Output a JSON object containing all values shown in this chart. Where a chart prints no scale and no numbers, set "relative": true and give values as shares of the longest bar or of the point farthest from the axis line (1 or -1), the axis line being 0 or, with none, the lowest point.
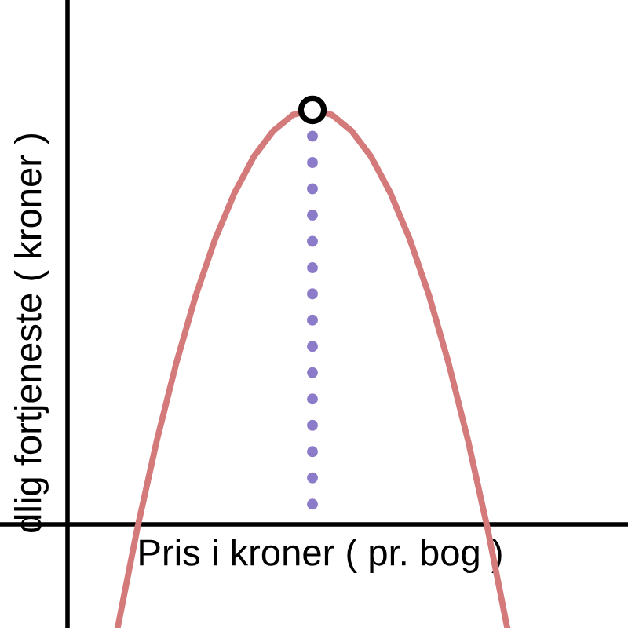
{
  "chart_data": {
    "type": "line",
    "relative": true,
    "xlabel": "Pris i kroner ( pr. bog )",
    "ylabel": "dlig fortjeneste ( kroner )",
    "categories": [
      null,
      null,
      null,
      null,
      null,
      null,
      null,
      null,
      null,
      null,
      null,
      null,
      null,
      null,
      null,
      null,
      null,
      null,
      null,
      null,
      null
    ],
    "series": [
      {
        "color": "#d47a7a",
        "values": [
          -0.248,
          -0.011,
          0.201,
          0.388,
          0.551,
          0.688,
          0.8,
          0.888,
          0.95,
          0.988,
          1,
          0.988,
          0.95,
          0.888,
          0.8,
          0.688,
          0.551,
          0.388,
          0.201,
          -0.011,
          -0.248
        ]
      }
    ]
  }
}
